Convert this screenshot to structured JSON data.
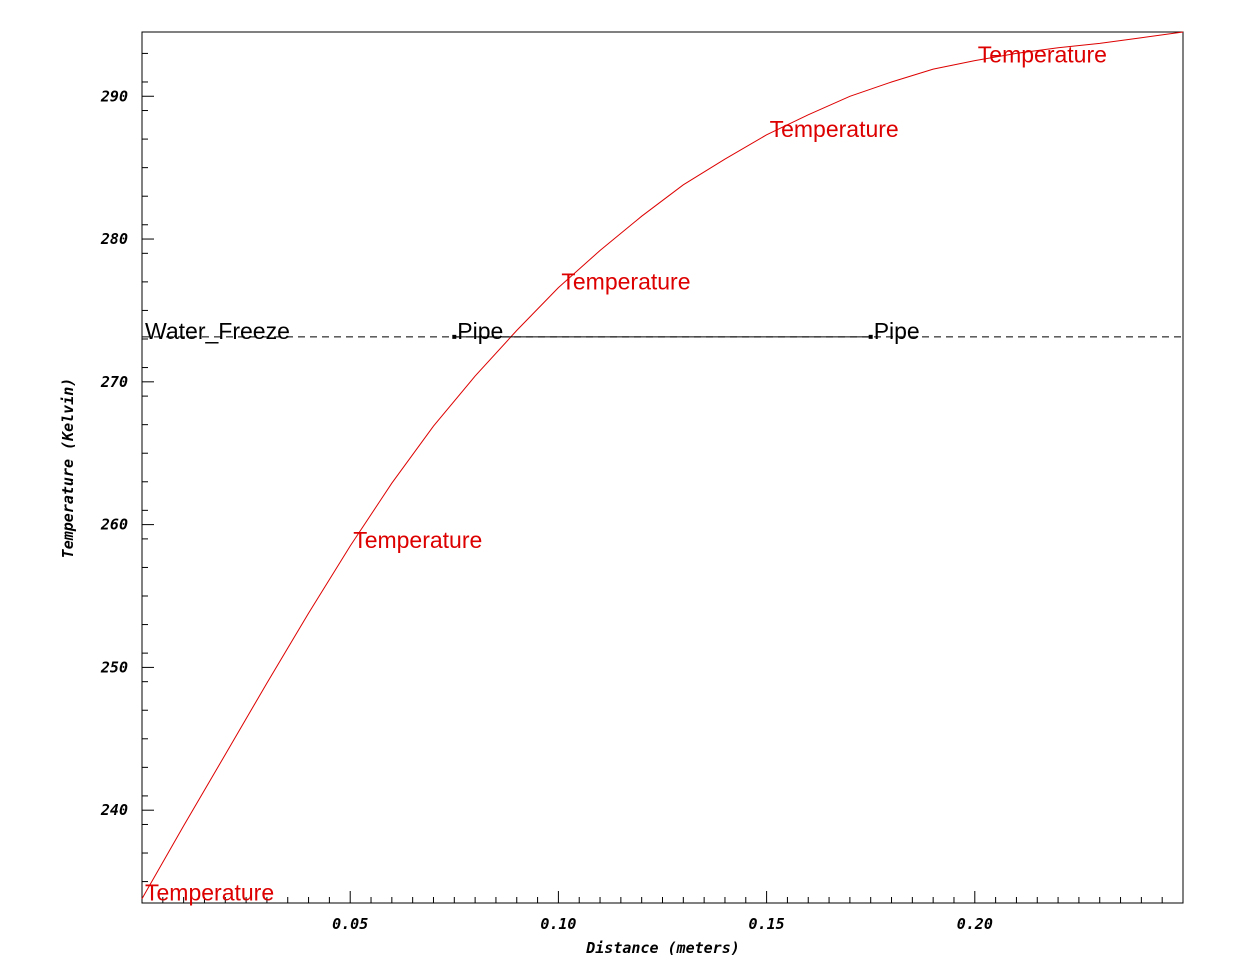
{
  "chart_data": {
    "type": "line",
    "xlabel": "Distance (meters)",
    "ylabel": "Temperature (Kelvin)",
    "xlim": [
      0.0,
      0.25
    ],
    "ylim": [
      233.5,
      294.5
    ],
    "x_ticks": [
      {
        "value": 0.05,
        "label": "0.05"
      },
      {
        "value": 0.1,
        "label": "0.10"
      },
      {
        "value": 0.15,
        "label": "0.15"
      },
      {
        "value": 0.2,
        "label": "0.20"
      }
    ],
    "y_ticks": [
      {
        "value": 240,
        "label": "240"
      },
      {
        "value": 250,
        "label": "250"
      },
      {
        "value": 260,
        "label": "260"
      },
      {
        "value": 270,
        "label": "270"
      },
      {
        "value": 280,
        "label": "280"
      },
      {
        "value": 290,
        "label": "290"
      }
    ],
    "grid": false,
    "series": [
      {
        "name": "Temperature",
        "color": "#dd0000",
        "style": "solid",
        "x": [
          0.0,
          0.01,
          0.02,
          0.03,
          0.04,
          0.05,
          0.06,
          0.07,
          0.08,
          0.09,
          0.1,
          0.11,
          0.12,
          0.13,
          0.14,
          0.15,
          0.16,
          0.17,
          0.18,
          0.19,
          0.2,
          0.21,
          0.22,
          0.23,
          0.24,
          0.25
        ],
        "y": [
          233.8,
          238.9,
          243.9,
          248.9,
          253.8,
          258.5,
          262.9,
          266.9,
          270.4,
          273.6,
          276.6,
          279.2,
          281.6,
          283.8,
          285.6,
          287.3,
          288.7,
          290.0,
          291.0,
          291.9,
          292.5,
          293.0,
          293.4,
          293.7,
          294.1,
          294.5
        ],
        "labels": [
          {
            "x": 0.0,
            "y": 233.8,
            "text": "Temperature"
          },
          {
            "x": 0.05,
            "y": 258.5,
            "text": "Temperature"
          },
          {
            "x": 0.1,
            "y": 276.6,
            "text": "Temperature"
          },
          {
            "x": 0.15,
            "y": 287.3,
            "text": "Temperature"
          },
          {
            "x": 0.2,
            "y": 292.5,
            "text": "Temperature"
          }
        ]
      },
      {
        "name": "Water_Freeze",
        "color": "#000000",
        "style": "dashed",
        "x": [
          0.0,
          0.25
        ],
        "y": [
          273.15,
          273.15
        ],
        "labels": [
          {
            "x": 0.0,
            "y": 273.15,
            "text": "Water_Freeze"
          }
        ]
      },
      {
        "name": "Pipe",
        "color": "#000000",
        "style": "solid",
        "markers": true,
        "x": [
          0.075,
          0.175
        ],
        "y": [
          273.15,
          273.15
        ],
        "labels": [
          {
            "x": 0.075,
            "y": 273.15,
            "text": "Pipe"
          },
          {
            "x": 0.175,
            "y": 273.15,
            "text": "Pipe"
          }
        ]
      }
    ]
  }
}
